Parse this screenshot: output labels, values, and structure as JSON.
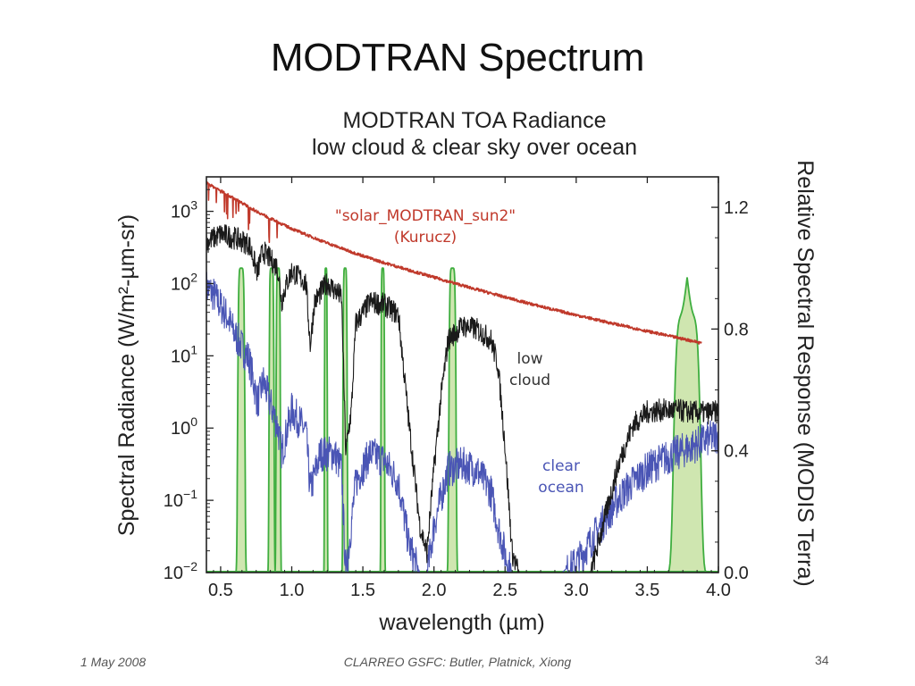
{
  "slide": {
    "title": "MODTRAN Spectrum",
    "footer_date": "1 May 2008",
    "footer_credit": "CLARREO GSFC: Butler, Platnick, Xiong",
    "page_number": "34"
  },
  "colors": {
    "solar": "#c0392b",
    "low_cloud": "#1a1a1a",
    "clear_ocean": "#4a55b5",
    "modis_band_fill": "#cfe6b0",
    "modis_band_line": "#3fae3f"
  },
  "chart_data": {
    "type": "line",
    "title": "MODTRAN TOA Radiance",
    "subtitle": "low cloud & clear sky over ocean",
    "xlabel": "wavelength (µm)",
    "ylabel": "Spectral Radiance (W/m²-µm-sr)",
    "y2label": "Relative Spectral Response (MODIS Terra)",
    "xlim": [
      0.4,
      4.0
    ],
    "ylim": [
      0.01,
      3000
    ],
    "yscale": "log",
    "y2lim": [
      0.0,
      1.3
    ],
    "x_ticks": [
      0.5,
      1.0,
      1.5,
      2.0,
      2.5,
      3.0,
      3.5,
      4.0
    ],
    "x_tick_labels": [
      "0.5",
      "1.0",
      "1.5",
      "2.0",
      "2.5",
      "3.0",
      "3.5",
      "4.0"
    ],
    "y_ticks": [
      {
        "value": 1000,
        "base": "10",
        "exp": "3"
      },
      {
        "value": 100,
        "base": "10",
        "exp": "2"
      },
      {
        "value": 10,
        "base": "10",
        "exp": "1"
      },
      {
        "value": 1,
        "base": "10",
        "exp": "0"
      },
      {
        "value": 0.1,
        "base": "10",
        "exp": "−1"
      },
      {
        "value": 0.01,
        "base": "10",
        "exp": "−2"
      }
    ],
    "y2_ticks": [
      0.0,
      0.4,
      0.8,
      1.2
    ],
    "y2_tick_labels": [
      "0.0",
      "0.4",
      "0.8",
      "1.2"
    ],
    "grid": false,
    "legend": "inline annotations",
    "series": [
      {
        "name": "solar_MODTRAN_sun2 (Kurucz)",
        "axis": "left",
        "label_lines": [
          "\"solar_MODTRAN_sun2\"",
          "(Kurucz)"
        ],
        "x": [
          0.4,
          0.45,
          0.5,
          0.55,
          0.6,
          0.65,
          0.7,
          0.8,
          0.9,
          1.0,
          1.2,
          1.4,
          1.6,
          1.8,
          2.0,
          2.2,
          2.4,
          2.6,
          2.8,
          3.0,
          3.2,
          3.4,
          3.6,
          3.8,
          3.88
        ],
        "values": [
          2500,
          2200,
          1950,
          1700,
          1500,
          1320,
          1150,
          900,
          720,
          580,
          400,
          285,
          210,
          160,
          123,
          95,
          74,
          58,
          46,
          37,
          30,
          24.5,
          20,
          16.5,
          15.2
        ]
      },
      {
        "name": "low cloud",
        "axis": "left",
        "label_lines": [
          "low",
          "cloud"
        ],
        "x": [
          0.4,
          0.5,
          0.6,
          0.7,
          0.76,
          0.78,
          0.8,
          0.9,
          0.93,
          0.95,
          1.0,
          1.1,
          1.13,
          1.16,
          1.25,
          1.35,
          1.38,
          1.42,
          1.45,
          1.55,
          1.65,
          1.75,
          1.82,
          1.9,
          1.95,
          2.0,
          2.05,
          2.1,
          2.2,
          2.3,
          2.4,
          2.45,
          2.5,
          2.55,
          2.6,
          2.7,
          2.8,
          2.9,
          3.0,
          3.1,
          3.2,
          3.3,
          3.4,
          3.5,
          3.6,
          3.7,
          3.8,
          3.9,
          4.0
        ],
        "values": [
          400,
          520,
          460,
          380,
          150,
          240,
          300,
          180,
          60,
          90,
          160,
          110,
          15,
          60,
          110,
          70,
          0.5,
          2,
          30,
          60,
          55,
          40,
          1.5,
          0.05,
          0.02,
          0.3,
          3,
          18,
          28,
          25,
          18,
          8,
          0.6,
          0.02,
          0.01,
          0.01,
          0.01,
          0.01,
          0.01,
          0.01,
          0.06,
          0.35,
          1.2,
          1.8,
          1.9,
          1.9,
          1.8,
          1.75,
          1.8
        ]
      },
      {
        "name": "clear ocean",
        "axis": "left",
        "label_lines": [
          "clear",
          "ocean"
        ],
        "x": [
          0.4,
          0.45,
          0.5,
          0.55,
          0.6,
          0.7,
          0.76,
          0.8,
          0.9,
          0.93,
          1.0,
          1.1,
          1.13,
          1.2,
          1.3,
          1.35,
          1.38,
          1.45,
          1.55,
          1.65,
          1.75,
          1.82,
          1.9,
          1.95,
          2.0,
          2.1,
          2.2,
          2.3,
          2.4,
          2.45,
          2.5,
          2.55,
          2.6,
          2.7,
          2.8,
          2.9,
          3.0,
          3.1,
          3.2,
          3.3,
          3.4,
          3.5,
          3.6,
          3.7,
          3.8,
          3.9,
          4.0
        ],
        "values": [
          100,
          80,
          55,
          38,
          22,
          10,
          2.5,
          5,
          1.2,
          0.5,
          2,
          1,
          0.15,
          0.5,
          0.5,
          0.3,
          0.01,
          0.2,
          0.5,
          0.4,
          0.2,
          0.03,
          0.01,
          0.01,
          0.05,
          0.3,
          0.35,
          0.3,
          0.15,
          0.05,
          0.02,
          0.01,
          0.01,
          0.01,
          0.01,
          0.01,
          0.015,
          0.03,
          0.06,
          0.12,
          0.2,
          0.3,
          0.4,
          0.5,
          0.6,
          0.75,
          0.9
        ]
      },
      {
        "name": "MODIS Terra relative spectral response",
        "axis": "right",
        "bands": [
          {
            "center": 0.645,
            "width": 0.05,
            "peak": 1.0
          },
          {
            "center": 0.858,
            "width": 0.035,
            "peak": 1.0
          },
          {
            "center": 0.905,
            "width": 0.03,
            "peak": 1.0
          },
          {
            "center": 1.24,
            "width": 0.02,
            "peak": 1.0
          },
          {
            "center": 1.375,
            "width": 0.03,
            "peak": 1.0
          },
          {
            "center": 1.64,
            "width": 0.025,
            "peak": 1.0
          },
          {
            "center": 2.13,
            "width": 0.05,
            "peak": 1.0
          },
          {
            "center": 3.78,
            "width": 0.18,
            "peak": 0.97
          }
        ]
      }
    ]
  }
}
